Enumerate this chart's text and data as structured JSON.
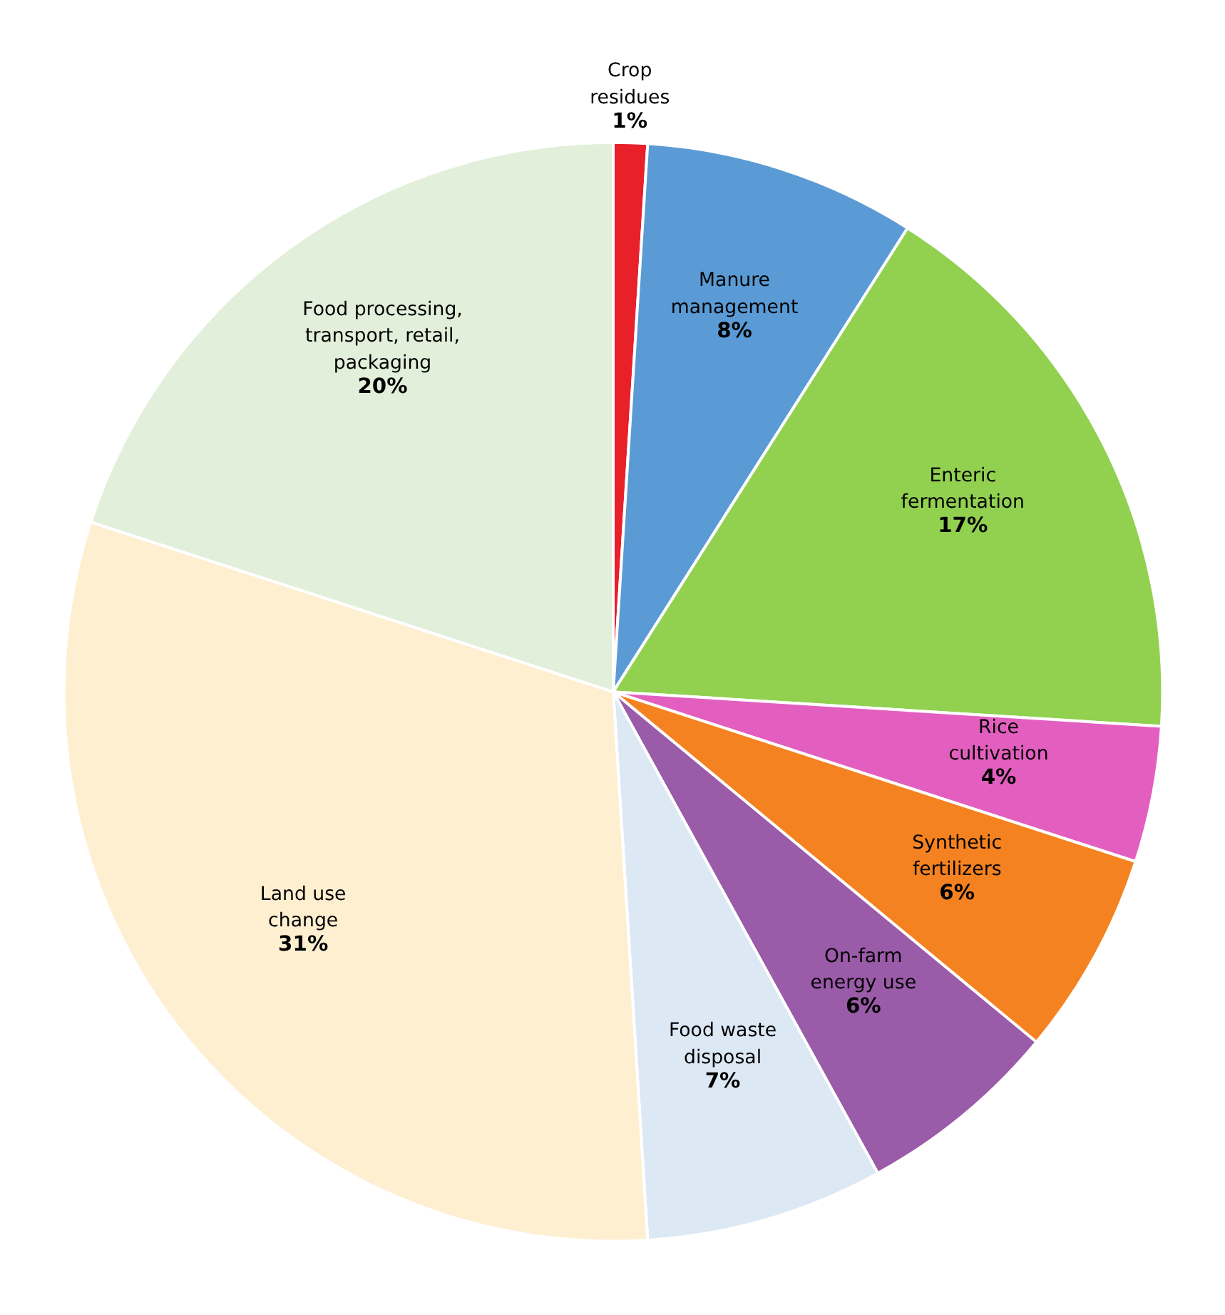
{
  "chart_data": {
    "type": "pie",
    "categories": [
      "Crop residues",
      "Manure management",
      "Enteric fermentation",
      "Rice cultivation",
      "Synthetic fertilizers",
      "On-farm energy use",
      "Food waste disposal",
      "Land use change",
      "Food processing, transport, retail, packaging"
    ],
    "values": [
      1,
      8,
      17,
      4,
      6,
      6,
      7,
      31,
      20
    ],
    "value_labels": [
      "1%",
      "8%",
      "17%",
      "4%",
      "6%",
      "6%",
      "7%",
      "31%",
      "20%"
    ],
    "colors": [
      "#e8202a",
      "#5b9bd5",
      "#92d050",
      "#e35fbf",
      "#f58220",
      "#9a5ba8",
      "#dde8f5",
      "#fdefd0",
      "#e2efda"
    ]
  }
}
